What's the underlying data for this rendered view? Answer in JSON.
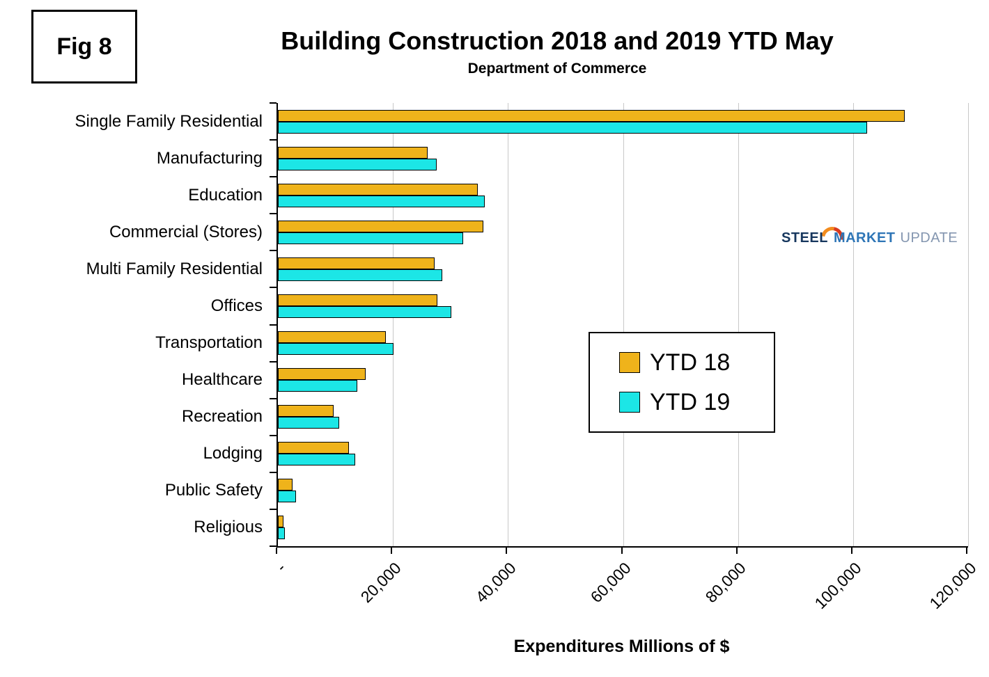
{
  "fig_label": "Fig 8",
  "title": "Building Construction 2018 and 2019 YTD May",
  "subtitle": "Department of Commerce",
  "xlabel": "Expenditures Millions of $",
  "logo": {
    "steel": "STEEL",
    "market": "MARKET",
    "update": "UPDATE"
  },
  "chart_data": {
    "type": "bar",
    "orientation": "horizontal",
    "title": "Building Construction 2018 and 2019 YTD May",
    "subtitle": "Department of Commerce",
    "xlabel": "Expenditures Millions of $",
    "ylabel": "",
    "xlim": [
      0,
      120000
    ],
    "grid": true,
    "gridline_color": "#C8C8C8",
    "bar_border_color": "#000000",
    "legend_position": "center-right",
    "categories": [
      "Single Family Residential",
      "Manufacturing",
      "Education",
      "Commercial (Stores)",
      "Multi Family Residential",
      "Offices",
      "Transportation",
      "Healthcare",
      "Recreation",
      "Lodging",
      "Public Safety",
      "Religious"
    ],
    "series": [
      {
        "name": "YTD 18",
        "color": "#EFB31B",
        "values": [
          109000,
          26000,
          34800,
          35700,
          27200,
          27700,
          18800,
          15300,
          9700,
          12300,
          2600,
          1000
        ]
      },
      {
        "name": "YTD 19",
        "color": "#1CE6E6",
        "values": [
          102500,
          27600,
          36000,
          32200,
          28600,
          30100,
          20100,
          13800,
          10700,
          13400,
          3200,
          1200
        ]
      }
    ],
    "xticks": {
      "values": [
        0,
        20000,
        40000,
        60000,
        80000,
        100000,
        120000
      ],
      "labels": [
        "-",
        "20,000",
        "40,000",
        "60,000",
        "80,000",
        "100,000",
        "120,000"
      ]
    }
  }
}
